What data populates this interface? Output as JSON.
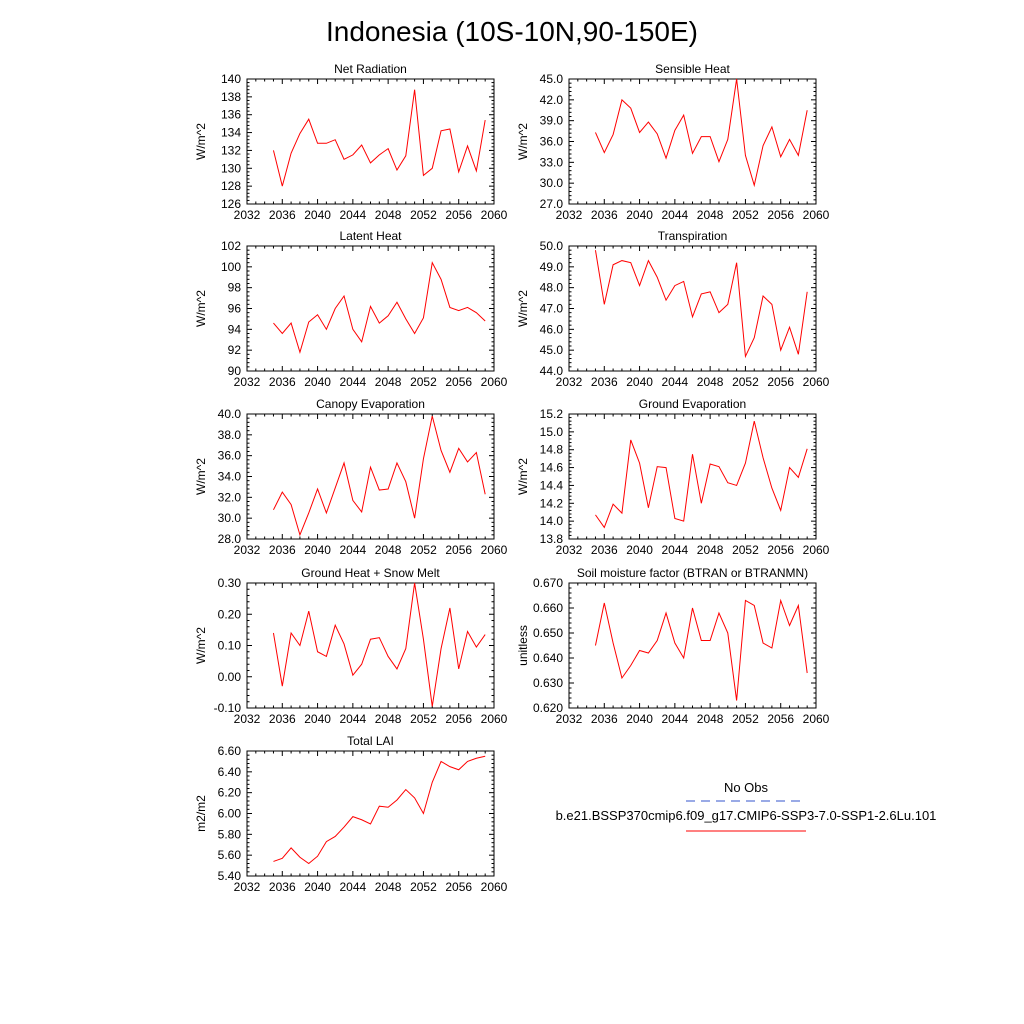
{
  "figure": {
    "title": "Indonesia (10S-10N,90-150E)"
  },
  "legend": {
    "entries": [
      {
        "label": "No Obs",
        "color": "#3355cc",
        "style": "dashed"
      },
      {
        "label": "b.e21.BSSP370cmip6.f09_g17.CMIP6-SSP3-7.0-SSP1-2.6Lu.101",
        "color": "#ff0000",
        "style": "solid"
      }
    ]
  },
  "chart_data": [
    {
      "type": "line",
      "title": "Net Radiation",
      "ylabel": "W/m^2",
      "xlim": [
        2032,
        2060
      ],
      "ylim": [
        126,
        140
      ],
      "xticks": [
        2032,
        2036,
        2040,
        2044,
        2048,
        2052,
        2056,
        2060
      ],
      "yticks": [
        "126",
        "128",
        "130",
        "132",
        "134",
        "136",
        "138",
        "140"
      ],
      "grid": false,
      "series": [
        {
          "color": "#ff0000",
          "x": [
            2035,
            2036,
            2037,
            2038,
            2039,
            2040,
            2041,
            2042,
            2043,
            2044,
            2045,
            2046,
            2047,
            2048,
            2049,
            2050,
            2051,
            2052,
            2053,
            2054,
            2055,
            2056,
            2057,
            2058,
            2059
          ],
          "y": [
            132.0,
            128.0,
            131.7,
            133.9,
            135.5,
            132.8,
            132.8,
            133.2,
            131.0,
            131.5,
            132.6,
            130.6,
            131.5,
            132.2,
            129.8,
            131.4,
            138.8,
            129.2,
            130.0,
            134.2,
            134.4,
            129.6,
            132.5,
            129.7,
            135.4
          ]
        }
      ]
    },
    {
      "type": "line",
      "title": "Sensible Heat",
      "ylabel": "W/m^2",
      "xlim": [
        2032,
        2060
      ],
      "ylim": [
        27,
        45
      ],
      "xticks": [
        2032,
        2036,
        2040,
        2044,
        2048,
        2052,
        2056,
        2060
      ],
      "yticks": [
        "27.0",
        "30.0",
        "33.0",
        "36.0",
        "39.0",
        "42.0",
        "45.0"
      ],
      "grid": false,
      "series": [
        {
          "color": "#ff0000",
          "x": [
            2035,
            2036,
            2037,
            2038,
            2039,
            2040,
            2041,
            2042,
            2043,
            2044,
            2045,
            2046,
            2047,
            2048,
            2049,
            2050,
            2051,
            2052,
            2053,
            2054,
            2055,
            2056,
            2057,
            2058,
            2059
          ],
          "y": [
            37.3,
            34.4,
            37.0,
            42.0,
            40.8,
            37.3,
            38.8,
            37.1,
            33.6,
            37.6,
            39.8,
            34.3,
            36.7,
            36.7,
            33.1,
            36.3,
            45.0,
            34.0,
            29.7,
            35.4,
            38.1,
            33.8,
            36.3,
            34.0,
            40.5
          ]
        }
      ]
    },
    {
      "type": "line",
      "title": "Latent Heat",
      "ylabel": "W/m^2",
      "xlim": [
        2032,
        2060
      ],
      "ylim": [
        90,
        102
      ],
      "xticks": [
        2032,
        2036,
        2040,
        2044,
        2048,
        2052,
        2056,
        2060
      ],
      "yticks": [
        "90",
        "92",
        "94",
        "96",
        "98",
        "100",
        "102"
      ],
      "grid": false,
      "series": [
        {
          "color": "#ff0000",
          "x": [
            2035,
            2036,
            2037,
            2038,
            2039,
            2040,
            2041,
            2042,
            2043,
            2044,
            2045,
            2046,
            2047,
            2048,
            2049,
            2050,
            2051,
            2052,
            2053,
            2054,
            2055,
            2056,
            2057,
            2058,
            2059
          ],
          "y": [
            94.6,
            93.6,
            94.6,
            91.8,
            94.7,
            95.4,
            94.0,
            96.0,
            97.2,
            94.0,
            92.8,
            96.2,
            94.6,
            95.3,
            96.6,
            95.0,
            93.6,
            95.1,
            100.4,
            98.8,
            96.1,
            95.8,
            96.1,
            95.6,
            94.8
          ]
        }
      ]
    },
    {
      "type": "line",
      "title": "Transpiration",
      "ylabel": "W/m^2",
      "xlim": [
        2032,
        2060
      ],
      "ylim": [
        44,
        50
      ],
      "xticks": [
        2032,
        2036,
        2040,
        2044,
        2048,
        2052,
        2056,
        2060
      ],
      "yticks": [
        "44.0",
        "45.0",
        "46.0",
        "47.0",
        "48.0",
        "49.0",
        "50.0"
      ],
      "grid": false,
      "series": [
        {
          "color": "#ff0000",
          "x": [
            2035,
            2036,
            2037,
            2038,
            2039,
            2040,
            2041,
            2042,
            2043,
            2044,
            2045,
            2046,
            2047,
            2048,
            2049,
            2050,
            2051,
            2052,
            2053,
            2054,
            2055,
            2056,
            2057,
            2058,
            2059
          ],
          "y": [
            49.8,
            47.2,
            49.1,
            49.3,
            49.2,
            48.1,
            49.3,
            48.5,
            47.4,
            48.1,
            48.3,
            46.6,
            47.7,
            47.8,
            46.8,
            47.2,
            49.2,
            44.7,
            45.6,
            47.6,
            47.2,
            45.0,
            46.1,
            44.8,
            47.8
          ]
        }
      ]
    },
    {
      "type": "line",
      "title": "Canopy Evaporation",
      "ylabel": "W/m^2",
      "xlim": [
        2032,
        2060
      ],
      "ylim": [
        28,
        40
      ],
      "xticks": [
        2032,
        2036,
        2040,
        2044,
        2048,
        2052,
        2056,
        2060
      ],
      "yticks": [
        "28.0",
        "30.0",
        "32.0",
        "34.0",
        "36.0",
        "38.0",
        "40.0"
      ],
      "grid": false,
      "series": [
        {
          "color": "#ff0000",
          "x": [
            2035,
            2036,
            2037,
            2038,
            2039,
            2040,
            2041,
            2042,
            2043,
            2044,
            2045,
            2046,
            2047,
            2048,
            2049,
            2050,
            2051,
            2052,
            2053,
            2054,
            2055,
            2056,
            2057,
            2058,
            2059
          ],
          "y": [
            30.8,
            32.5,
            31.3,
            28.4,
            30.5,
            32.8,
            30.5,
            32.9,
            35.3,
            31.7,
            30.6,
            34.9,
            32.7,
            32.8,
            35.3,
            33.5,
            30.0,
            35.7,
            39.8,
            36.5,
            34.4,
            36.7,
            35.4,
            36.3,
            32.3
          ]
        }
      ]
    },
    {
      "type": "line",
      "title": "Ground Evaporation",
      "ylabel": "W/m^2",
      "xlim": [
        2032,
        2060
      ],
      "ylim": [
        13.8,
        15.2
      ],
      "xticks": [
        2032,
        2036,
        2040,
        2044,
        2048,
        2052,
        2056,
        2060
      ],
      "yticks": [
        "13.8",
        "14.0",
        "14.2",
        "14.4",
        "14.6",
        "14.8",
        "15.0",
        "15.2"
      ],
      "grid": false,
      "series": [
        {
          "color": "#ff0000",
          "x": [
            2035,
            2036,
            2037,
            2038,
            2039,
            2040,
            2041,
            2042,
            2043,
            2044,
            2045,
            2046,
            2047,
            2048,
            2049,
            2050,
            2051,
            2052,
            2053,
            2054,
            2055,
            2056,
            2057,
            2058,
            2059
          ],
          "y": [
            14.07,
            13.93,
            14.19,
            14.09,
            14.91,
            14.65,
            14.15,
            14.61,
            14.6,
            14.03,
            14.0,
            14.75,
            14.2,
            14.64,
            14.61,
            14.43,
            14.4,
            14.65,
            15.12,
            14.71,
            14.37,
            14.12,
            14.6,
            14.49,
            14.81
          ]
        }
      ]
    },
    {
      "type": "line",
      "title": "Ground Heat + Snow Melt",
      "ylabel": "W/m^2",
      "xlim": [
        2032,
        2060
      ],
      "ylim": [
        -0.1,
        0.3
      ],
      "xticks": [
        2032,
        2036,
        2040,
        2044,
        2048,
        2052,
        2056,
        2060
      ],
      "yticks": [
        "-0.10",
        "0.00",
        "0.10",
        "0.20",
        "0.30"
      ],
      "grid": false,
      "series": [
        {
          "color": "#ff0000",
          "x": [
            2035,
            2036,
            2037,
            2038,
            2039,
            2040,
            2041,
            2042,
            2043,
            2044,
            2045,
            2046,
            2047,
            2048,
            2049,
            2050,
            2051,
            2052,
            2053,
            2054,
            2055,
            2056,
            2057,
            2058,
            2059
          ],
          "y": [
            0.14,
            -0.03,
            0.14,
            0.1,
            0.21,
            0.08,
            0.065,
            0.165,
            0.105,
            0.005,
            0.04,
            0.12,
            0.125,
            0.065,
            0.025,
            0.09,
            0.3,
            0.12,
            -0.095,
            0.09,
            0.22,
            0.025,
            0.145,
            0.095,
            0.135
          ]
        }
      ]
    },
    {
      "type": "line",
      "title": "Soil moisture factor (BTRAN or BTRANMN)",
      "ylabel": "unitless",
      "xlim": [
        2032,
        2060
      ],
      "ylim": [
        0.62,
        0.67
      ],
      "xticks": [
        2032,
        2036,
        2040,
        2044,
        2048,
        2052,
        2056,
        2060
      ],
      "yticks": [
        "0.620",
        "0.630",
        "0.640",
        "0.650",
        "0.660",
        "0.670"
      ],
      "grid": false,
      "series": [
        {
          "color": "#ff0000",
          "x": [
            2035,
            2036,
            2037,
            2038,
            2039,
            2040,
            2041,
            2042,
            2043,
            2044,
            2045,
            2046,
            2047,
            2048,
            2049,
            2050,
            2051,
            2052,
            2053,
            2054,
            2055,
            2056,
            2057,
            2058,
            2059
          ],
          "y": [
            0.645,
            0.662,
            0.646,
            0.632,
            0.637,
            0.643,
            0.642,
            0.647,
            0.658,
            0.646,
            0.64,
            0.66,
            0.647,
            0.647,
            0.658,
            0.65,
            0.623,
            0.663,
            0.661,
            0.646,
            0.644,
            0.663,
            0.653,
            0.661,
            0.634
          ]
        }
      ]
    },
    {
      "type": "line",
      "title": "Total LAI",
      "ylabel": "m2/m2",
      "xlim": [
        2032,
        2060
      ],
      "ylim": [
        5.4,
        6.6
      ],
      "xticks": [
        2032,
        2036,
        2040,
        2044,
        2048,
        2052,
        2056,
        2060
      ],
      "yticks": [
        "5.40",
        "5.60",
        "5.80",
        "6.00",
        "6.20",
        "6.40",
        "6.60"
      ],
      "grid": false,
      "series": [
        {
          "color": "#ff0000",
          "x": [
            2035,
            2036,
            2037,
            2038,
            2039,
            2040,
            2041,
            2042,
            2043,
            2044,
            2045,
            2046,
            2047,
            2048,
            2049,
            2050,
            2051,
            2052,
            2053,
            2054,
            2055,
            2056,
            2057,
            2058,
            2059
          ],
          "y": [
            5.54,
            5.57,
            5.67,
            5.58,
            5.52,
            5.59,
            5.73,
            5.78,
            5.87,
            5.97,
            5.94,
            5.9,
            6.07,
            6.06,
            6.13,
            6.23,
            6.15,
            6.0,
            6.3,
            6.5,
            6.45,
            6.42,
            6.5,
            6.53,
            6.55
          ]
        }
      ]
    }
  ]
}
